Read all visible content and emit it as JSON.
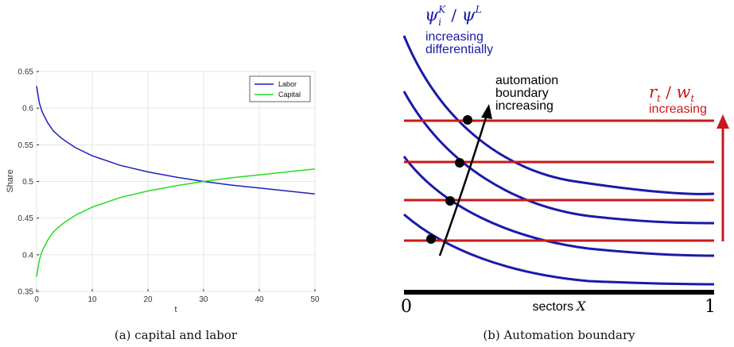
{
  "chart_data": [
    {
      "type": "line",
      "caption": "(a) capital and labor",
      "xlabel": "t",
      "ylabel": "Share",
      "xlim": [
        0,
        50
      ],
      "ylim": [
        0.35,
        0.65
      ],
      "xticks": [
        "0",
        "10",
        "20",
        "30",
        "40",
        "50"
      ],
      "yticks": [
        "0.35",
        "0.4",
        "0.45",
        "0.5",
        "0.55",
        "0.6",
        "0.65"
      ],
      "grid": true,
      "legend_position": "top-right",
      "colors": {
        "Labor": "#1f1fbf",
        "Capital": "#22dd22"
      },
      "series": [
        {
          "name": "Labor",
          "x": [
            0,
            0.5,
            1,
            2,
            3,
            4,
            5,
            7,
            10,
            15,
            20,
            25,
            30,
            35,
            40,
            45,
            50
          ],
          "values": [
            0.63,
            0.607,
            0.595,
            0.58,
            0.569,
            0.562,
            0.556,
            0.546,
            0.535,
            0.522,
            0.513,
            0.506,
            0.5,
            0.495,
            0.491,
            0.487,
            0.483
          ]
        },
        {
          "name": "Capital",
          "x": [
            0,
            0.5,
            1,
            2,
            3,
            4,
            5,
            7,
            10,
            15,
            20,
            25,
            30,
            35,
            40,
            45,
            50
          ],
          "values": [
            0.37,
            0.393,
            0.405,
            0.42,
            0.431,
            0.438,
            0.444,
            0.454,
            0.465,
            0.478,
            0.487,
            0.494,
            0.5,
            0.505,
            0.509,
            0.513,
            0.517
          ]
        }
      ]
    },
    {
      "type": "diagram",
      "caption": "(b) Automation boundary",
      "x_axis": {
        "label": "sectors",
        "symbol": "X",
        "min_label": "0",
        "max_label": "1"
      },
      "curves_label": {
        "symbol": "ψ",
        "sub": "i",
        "sup_k": "K",
        "sup_l": "L",
        "text_line1": "increasing",
        "text_line2": "differentially"
      },
      "lines_label": {
        "r": "r",
        "w": "w",
        "sub": "t",
        "text": "increasing"
      },
      "boundary_label": [
        "automation",
        "boundary",
        "increasing"
      ],
      "colors": {
        "curves": "#1a1aaa",
        "lines": "#c81a1a",
        "boundary": "#000000"
      }
    }
  ]
}
